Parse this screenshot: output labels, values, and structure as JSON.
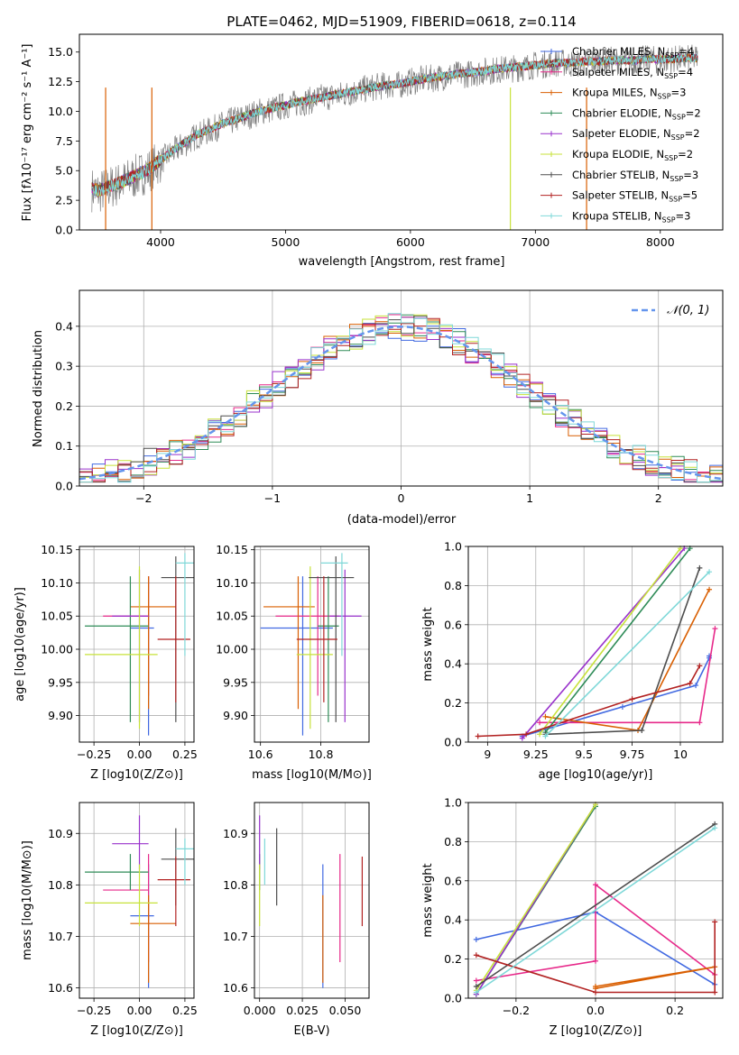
{
  "chart_data": [
    {
      "id": "spectrum",
      "type": "line",
      "title": "PLATE=0462, MJD=51909, FIBERID=0618, z=0.114",
      "xlabel": "wavelength [Angstrom, rest frame]",
      "ylabel": "Flux [fλ10⁻¹⁷ erg cm⁻² s⁻¹ A⁻¹]",
      "xlim": [
        3350,
        8500
      ],
      "ylim": [
        0,
        16.5
      ],
      "xticks": [
        4000,
        5000,
        6000,
        7000,
        8000
      ],
      "yticks": [
        0.0,
        2.5,
        5.0,
        7.5,
        10.0,
        12.5,
        15.0
      ],
      "x": [
        3450,
        3500,
        3600,
        3700,
        3800,
        3900,
        4000,
        4100,
        4200,
        4300,
        4400,
        4500,
        4600,
        4700,
        4800,
        4900,
        5000,
        5100,
        5200,
        5300,
        5400,
        5500,
        5600,
        5700,
        5800,
        5900,
        6000,
        6100,
        6200,
        6300,
        6400,
        6500,
        6600,
        6700,
        6800,
        6900,
        7000,
        7100,
        7200,
        7300,
        7400,
        7500,
        7600,
        7700,
        7800,
        7900,
        8000,
        8100,
        8200,
        8300
      ],
      "series": [
        {
          "name": "data",
          "color": "#808080",
          "values": [
            3.4,
            3.2,
            3.6,
            4.0,
            4.5,
            5.0,
            5.8,
            6.6,
            7.3,
            8.0,
            8.4,
            8.9,
            9.3,
            9.6,
            10.0,
            10.2,
            10.5,
            10.7,
            10.9,
            11.2,
            11.3,
            11.5,
            11.8,
            12.0,
            12.2,
            12.2,
            12.5,
            12.7,
            12.8,
            13.0,
            13.1,
            13.2,
            13.4,
            13.5,
            13.6,
            13.7,
            13.9,
            14.0,
            14.1,
            14.0,
            14.1,
            14.2,
            14.3,
            14.2,
            14.3,
            14.4,
            14.3,
            14.4,
            14.4,
            14.5
          ]
        },
        {
          "name": "model",
          "color": "#b22222",
          "values": [
            3.5,
            3.3,
            3.7,
            4.1,
            4.6,
            5.1,
            5.9,
            6.7,
            7.4,
            8.1,
            8.5,
            9.0,
            9.3,
            9.7,
            10.0,
            10.3,
            10.5,
            10.8,
            11.0,
            11.2,
            11.4,
            11.6,
            11.8,
            12.0,
            12.2,
            12.3,
            12.5,
            12.7,
            12.9,
            13.0,
            13.2,
            13.3,
            13.4,
            13.6,
            13.7,
            13.8,
            13.9,
            14.0,
            14.1,
            14.1,
            14.2,
            14.2,
            14.3,
            14.3,
            14.3,
            14.4,
            14.4,
            14.4,
            14.5,
            14.5
          ]
        }
      ],
      "legend": {
        "placement": "top-right",
        "entries": [
          {
            "label": "Chabrier MILES, N",
            "sub": "SSP",
            "suffix": "=4",
            "color": "#4169e1"
          },
          {
            "label": "Salpeter MILES, N",
            "sub": "SSP",
            "suffix": "=4",
            "color": "#e7298a"
          },
          {
            "label": "Kroupa MILES, N",
            "sub": "SSP",
            "suffix": "=3",
            "color": "#d95f02"
          },
          {
            "label": "Chabrier ELODIE, N",
            "sub": "SSP",
            "suffix": "=2",
            "color": "#2e8b57"
          },
          {
            "label": "Salpeter ELODIE, N",
            "sub": "SSP",
            "suffix": "=2",
            "color": "#9932cc"
          },
          {
            "label": "Kroupa ELODIE, N",
            "sub": "SSP",
            "suffix": "=2",
            "color": "#c7e23a"
          },
          {
            "label": "Chabrier STELIB, N",
            "sub": "SSP",
            "suffix": "=3",
            "color": "#4d4d4d"
          },
          {
            "label": "Salpeter STELIB, N",
            "sub": "SSP",
            "suffix": "=5",
            "color": "#b22222"
          },
          {
            "label": "Kroupa STELIB, N",
            "sub": "SSP",
            "suffix": "=3",
            "color": "#7fd8d8"
          }
        ]
      }
    },
    {
      "id": "residuals",
      "type": "line",
      "xlabel": "(data-model)/error",
      "ylabel": "Normed distribution",
      "xlim": [
        -2.5,
        2.5
      ],
      "ylim": [
        0,
        0.49
      ],
      "xticks": [
        -2,
        -1,
        0,
        1,
        2
      ],
      "yticks": [
        0.0,
        0.1,
        0.2,
        0.3,
        0.4
      ],
      "legend": {
        "placement": "top-right",
        "label": "𝒩(0, 1)",
        "color": "#6495ed"
      },
      "grid": true
    },
    {
      "id": "age-vs-Z",
      "type": "scatter",
      "xlabel": "Z [log10(Z/Z⊙)]",
      "ylabel": "age  [log10(age/yr)]",
      "xlim": [
        -0.33,
        0.3
      ],
      "ylim": [
        9.86,
        10.155
      ],
      "xticks": [
        -0.25,
        0.0,
        0.25
      ],
      "xticklabels": [
        "−0.25",
        "0.00",
        "0.25"
      ],
      "yticks": [
        9.9,
        9.95,
        10.0,
        10.05,
        10.1,
        10.15
      ],
      "grid": true
    },
    {
      "id": "age-vs-mass",
      "type": "scatter",
      "xlabel": "mass [log10(M/M⊙)]",
      "xlim": [
        10.58,
        10.96
      ],
      "ylim": [
        9.86,
        10.155
      ],
      "xticks": [
        10.6,
        10.8
      ],
      "yticks": [
        9.9,
        9.95,
        10.0,
        10.05,
        10.1,
        10.15
      ],
      "grid": true
    },
    {
      "id": "weight-vs-age",
      "type": "line",
      "xlabel": "age  [log10(age/yr)]",
      "ylabel": "mass weight",
      "xlim": [
        8.9,
        10.22
      ],
      "ylim": [
        0,
        1
      ],
      "xticks": [
        9.0,
        9.25,
        9.5,
        9.75,
        10.0
      ],
      "yticks": [
        0.0,
        0.2,
        0.4,
        0.6,
        0.8,
        1.0
      ],
      "grid": true
    },
    {
      "id": "mass-vs-Z",
      "type": "scatter",
      "xlabel": "Z [log10(Z/Z⊙)]",
      "ylabel": "mass [log10(M/M⊙)]",
      "xlim": [
        -0.33,
        0.3
      ],
      "ylim": [
        10.58,
        10.96
      ],
      "xticks": [
        -0.25,
        0.0,
        0.25
      ],
      "xticklabels": [
        "−0.25",
        "0.00",
        "0.25"
      ],
      "yticks": [
        10.6,
        10.7,
        10.8,
        10.9
      ],
      "grid": true
    },
    {
      "id": "mass-vs-ebv",
      "type": "scatter",
      "xlabel": "E(B-V)",
      "xlim": [
        -0.003,
        0.064
      ],
      "ylim": [
        10.58,
        10.96
      ],
      "xticks": [
        0.0,
        0.025,
        0.05
      ],
      "xticklabels": [
        "0.000",
        "0.025",
        "0.050"
      ],
      "yticks": [
        10.6,
        10.7,
        10.8,
        10.9
      ],
      "grid": true
    },
    {
      "id": "weight-vs-Z",
      "type": "line",
      "xlabel": "Z [log10(Z/Z⊙)]",
      "ylabel": "mass weight",
      "xlim": [
        -0.32,
        0.32
      ],
      "ylim": [
        0,
        1
      ],
      "xticks": [
        -0.2,
        0.0,
        0.2
      ],
      "xticklabels": [
        "−0.2",
        "0.0",
        "0.2"
      ],
      "yticks": [
        0.0,
        0.2,
        0.4,
        0.6,
        0.8,
        1.0
      ],
      "grid": true
    }
  ],
  "model_colors": [
    "#4169e1",
    "#e7298a",
    "#d95f02",
    "#2e8b57",
    "#9932cc",
    "#c7e23a",
    "#4d4d4d",
    "#b22222",
    "#7fd8d8"
  ],
  "models": [
    {
      "age": 10.032,
      "age_err": [
        10.032,
        9.87,
        10.11
      ],
      "Z": 0.05,
      "Z_range": [
        -0.05,
        0.08
      ],
      "mass": 10.74,
      "mass_range": [
        10.6,
        10.84
      ],
      "ebv": 0.037,
      "wa": [
        [
          9.18,
          0.03
        ],
        [
          9.7,
          0.18
        ],
        [
          10.08,
          0.29
        ],
        [
          10.15,
          0.43
        ],
        [
          10.15,
          0.44
        ]
      ],
      "wz": [
        [
          -0.3,
          0.3
        ],
        [
          0.0,
          0.44
        ],
        [
          0.3,
          0.07
        ]
      ]
    },
    {
      "age": 10.05,
      "age_err": [
        10.05,
        9.93,
        10.11
      ],
      "Z": 0.05,
      "Z_range": [
        -0.2,
        0.05
      ],
      "mass": 10.79,
      "mass_range": [
        10.65,
        10.86
      ],
      "ebv": 0.047,
      "wa": [
        [
          9.27,
          0.1
        ],
        [
          10.1,
          0.1
        ],
        [
          10.18,
          0.58
        ]
      ],
      "wz": [
        [
          -0.3,
          0.09
        ],
        [
          0.0,
          0.19
        ],
        [
          0.0,
          0.58
        ],
        [
          0.3,
          0.12
        ]
      ]
    },
    {
      "age": 10.064,
      "age_err": [
        10.064,
        9.91,
        10.11
      ],
      "Z": 0.05,
      "Z_range": [
        -0.05,
        0.2
      ],
      "mass": 10.725,
      "mass_range": [
        10.61,
        10.78
      ],
      "ebv": 0.037,
      "wa": [
        [
          9.3,
          0.13
        ],
        [
          9.78,
          0.06
        ],
        [
          10.15,
          0.78
        ]
      ],
      "wz": [
        [
          0.0,
          0.05
        ],
        [
          0.3,
          0.16
        ],
        [
          0.0,
          0.06
        ]
      ]
    },
    {
      "age": 10.035,
      "age_err": [
        10.035,
        9.89,
        10.11
      ],
      "Z": -0.05,
      "Z_range": [
        -0.3,
        0.05
      ],
      "mass": 10.825,
      "mass_range": [
        10.79,
        10.86
      ],
      "ebv": 0.0,
      "wa": [
        [
          9.3,
          0.05
        ],
        [
          10.05,
          0.99
        ]
      ],
      "wz": [
        [
          -0.3,
          0.02
        ],
        [
          0.0,
          0.98
        ]
      ]
    },
    {
      "age": 10.05,
      "age_err": [
        10.05,
        9.89,
        10.12
      ],
      "Z": 0.0,
      "Z_range": [
        -0.15,
        0.05
      ],
      "mass": 10.88,
      "mass_range": [
        10.83,
        10.935
      ],
      "ebv": 0.0,
      "wa": [
        [
          9.18,
          0.02
        ],
        [
          10.02,
          0.99
        ]
      ],
      "wz": [
        [
          -0.3,
          0.02
        ],
        [
          0.0,
          0.99
        ]
      ]
    },
    {
      "age": 9.992,
      "age_err": [
        9.992,
        9.88,
        10.125
      ],
      "Z": 0.0,
      "Z_range": [
        -0.3,
        0.1
      ],
      "mass": 10.765,
      "mass_range": [
        10.72,
        10.84
      ],
      "ebv": 0.0,
      "wa": [
        [
          9.27,
          0.04
        ],
        [
          10.0,
          0.99
        ]
      ],
      "wz": [
        [
          -0.3,
          0.04
        ],
        [
          0.0,
          0.99
        ]
      ]
    },
    {
      "age": 10.108,
      "age_err": [
        10.108,
        9.89,
        10.14
      ],
      "Z": 0.2,
      "Z_range": [
        0.12,
        0.3
      ],
      "mass": 10.85,
      "mass_range": [
        10.76,
        10.91
      ],
      "ebv": 0.01,
      "wa": [
        [
          9.3,
          0.04
        ],
        [
          9.8,
          0.06
        ],
        [
          10.1,
          0.89
        ]
      ],
      "wz": [
        [
          -0.3,
          0.06
        ],
        [
          0.3,
          0.89
        ]
      ]
    },
    {
      "age": 10.015,
      "age_err": [
        10.015,
        9.92,
        10.11
      ],
      "Z": 0.2,
      "Z_range": [
        0.1,
        0.28
      ],
      "mass": 10.81,
      "mass_range": [
        10.72,
        10.855
      ],
      "ebv": 0.06,
      "wa": [
        [
          8.95,
          0.03
        ],
        [
          9.2,
          0.04
        ],
        [
          9.75,
          0.22
        ],
        [
          10.05,
          0.3
        ],
        [
          10.1,
          0.39
        ]
      ],
      "wz": [
        [
          -0.3,
          0.22
        ],
        [
          0.0,
          0.03
        ],
        [
          0.3,
          0.03
        ],
        [
          0.3,
          0.39
        ]
      ]
    },
    {
      "age": 10.13,
      "age_err": [
        10.13,
        9.99,
        10.145
      ],
      "Z": 0.25,
      "Z_range": [
        0.2,
        0.3
      ],
      "mass": 10.87,
      "mass_range": [
        10.8,
        10.89
      ],
      "ebv": 0.003,
      "wa": [
        [
          9.3,
          0.03
        ],
        [
          10.15,
          0.87
        ]
      ],
      "wz": [
        [
          -0.3,
          0.03
        ],
        [
          0.3,
          0.87
        ]
      ]
    }
  ]
}
